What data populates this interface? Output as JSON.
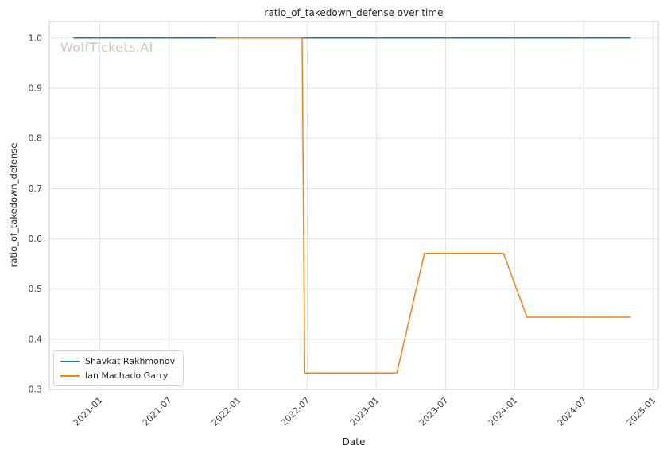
{
  "watermark": "WolfTickets.AI",
  "chart_data": {
    "type": "line",
    "title": "ratio_of_takedown_defense over time",
    "xlabel": "Date",
    "ylabel": "ratio_of_takedown_defense",
    "grid": true,
    "legend_position": "lower left",
    "xlim": [
      "2020-08-20",
      "2025-01-15"
    ],
    "ylim": [
      0.3,
      1.033
    ],
    "yticks": [
      0.3,
      0.4,
      0.5,
      0.6,
      0.7,
      0.8,
      0.9,
      1.0
    ],
    "xticks": [
      "2021-01",
      "2021-07",
      "2022-01",
      "2022-07",
      "2023-01",
      "2023-07",
      "2024-01",
      "2024-07",
      "2025-01"
    ],
    "series": [
      {
        "name": "Shavkat Rakhmonov",
        "color": "#1f77b4",
        "points": [
          {
            "date": "2020-10-24",
            "value": 1.0
          },
          {
            "date": "2024-11-02",
            "value": 1.0
          }
        ]
      },
      {
        "name": "Ian Machado Garry",
        "color": "#ff7f0e",
        "points": [
          {
            "date": "2021-11-06",
            "value": 1.0
          },
          {
            "date": "2022-06-18",
            "value": 1.0
          },
          {
            "date": "2022-06-25",
            "value": 0.333
          },
          {
            "date": "2023-02-25",
            "value": 0.333
          },
          {
            "date": "2023-05-06",
            "value": 0.571
          },
          {
            "date": "2023-12-02",
            "value": 0.571
          },
          {
            "date": "2024-02-03",
            "value": 0.444
          },
          {
            "date": "2024-11-02",
            "value": 0.444
          }
        ]
      }
    ]
  }
}
